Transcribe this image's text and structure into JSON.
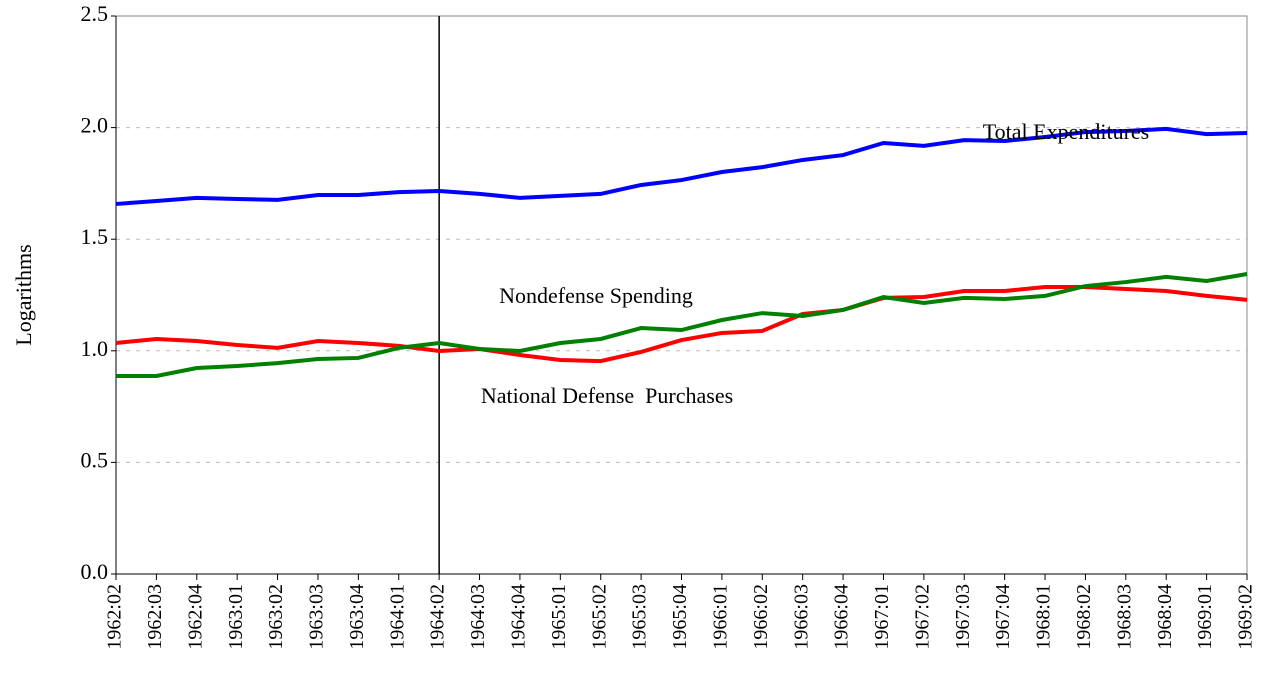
{
  "chart_data": {
    "type": "line",
    "y_label": "Logarithms",
    "categories": [
      "1962:02",
      "1962:03",
      "1962:04",
      "1963:01",
      "1963:02",
      "1963:03",
      "1963:04",
      "1964:01",
      "1964:02",
      "1964:03",
      "1964:04",
      "1965:01",
      "1965:02",
      "1965:03",
      "1965:04",
      "1966:01",
      "1966:02",
      "1966:03",
      "1966:04",
      "1967:01",
      "1967:02",
      "1967:03",
      "1967:04",
      "1968:01",
      "1968:02",
      "1968:03",
      "1968:04",
      "1969:01",
      "1969:02"
    ],
    "series": [
      {
        "name": "Total Expenditures",
        "color": "#0000ff",
        "values": [
          1.658,
          1.671,
          1.685,
          1.68,
          1.676,
          1.698,
          1.698,
          1.711,
          1.716,
          1.703,
          1.685,
          1.694,
          1.703,
          1.743,
          1.765,
          1.801,
          1.823,
          1.855,
          1.877,
          1.931,
          1.918,
          1.944,
          1.94,
          1.958,
          1.98,
          1.985,
          1.994,
          1.971,
          1.976
        ]
      },
      {
        "name": "National Defense  Purchases",
        "color": "#ff0000",
        "values": [
          1.035,
          1.053,
          1.044,
          1.026,
          1.013,
          1.044,
          1.035,
          1.022,
          0.999,
          1.008,
          0.981,
          0.959,
          0.954,
          0.995,
          1.048,
          1.08,
          1.089,
          1.165,
          1.183,
          1.237,
          1.241,
          1.268,
          1.268,
          1.286,
          1.286,
          1.277,
          1.268,
          1.246,
          1.228
        ]
      },
      {
        "name": "Nondefense Spending",
        "color": "#008000",
        "values": [
          0.887,
          0.887,
          0.923,
          0.932,
          0.945,
          0.963,
          0.968,
          1.013,
          1.035,
          1.008,
          0.999,
          1.035,
          1.053,
          1.102,
          1.093,
          1.138,
          1.169,
          1.156,
          1.183,
          1.241,
          1.214,
          1.237,
          1.232,
          1.246,
          1.29,
          1.308,
          1.331,
          1.313,
          1.344
        ]
      }
    ],
    "ylim": [
      0,
      2.5
    ],
    "yticks": [
      {
        "value": 0,
        "label": "0.0"
      },
      {
        "value": 0.5,
        "label": "0.5"
      },
      {
        "value": 1,
        "label": "1.0"
      },
      {
        "value": 1.5,
        "label": "1.5"
      },
      {
        "value": 2,
        "label": "2.0"
      },
      {
        "value": 2.5,
        "label": "2.5"
      }
    ],
    "grid": true,
    "vline": "1964:02"
  }
}
